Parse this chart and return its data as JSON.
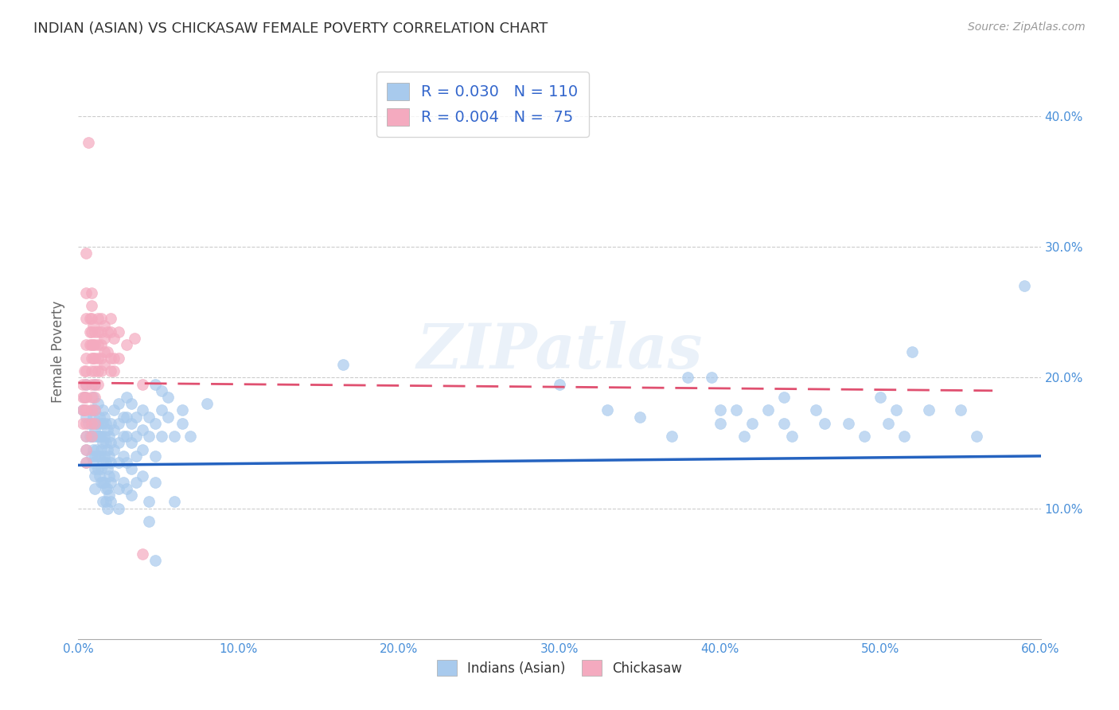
{
  "title": "INDIAN (ASIAN) VS CHICKASAW FEMALE POVERTY CORRELATION CHART",
  "source": "Source: ZipAtlas.com",
  "ylabel": "Female Poverty",
  "xlim": [
    0.0,
    0.6
  ],
  "ylim": [
    0.0,
    0.44
  ],
  "xticks": [
    0.0,
    0.1,
    0.2,
    0.3,
    0.4,
    0.5,
    0.6
  ],
  "yticks": [
    0.1,
    0.2,
    0.3,
    0.4
  ],
  "xticklabels": [
    "0.0%",
    "10.0%",
    "20.0%",
    "30.0%",
    "40.0%",
    "50.0%",
    "60.0%"
  ],
  "yticklabels": [
    "10.0%",
    "20.0%",
    "30.0%",
    "40.0%"
  ],
  "color_blue": "#A8CAED",
  "color_pink": "#F4AABF",
  "color_blue_line": "#2563C0",
  "color_pink_line": "#E05070",
  "legend_blue_R": "0.030",
  "legend_blue_N": "110",
  "legend_pink_R": "0.004",
  "legend_pink_N": "75",
  "watermark": "ZIPatlas",
  "blue_trend_y_start": 0.133,
  "blue_trend_y_end": 0.14,
  "pink_trend_y_start": 0.196,
  "pink_trend_y_end": 0.19,
  "blue_scatter": [
    [
      0.003,
      0.175
    ],
    [
      0.004,
      0.185
    ],
    [
      0.005,
      0.195
    ],
    [
      0.005,
      0.17
    ],
    [
      0.005,
      0.155
    ],
    [
      0.005,
      0.145
    ],
    [
      0.005,
      0.135
    ],
    [
      0.006,
      0.165
    ],
    [
      0.007,
      0.155
    ],
    [
      0.008,
      0.175
    ],
    [
      0.008,
      0.165
    ],
    [
      0.008,
      0.155
    ],
    [
      0.008,
      0.14
    ],
    [
      0.009,
      0.185
    ],
    [
      0.009,
      0.17
    ],
    [
      0.009,
      0.155
    ],
    [
      0.009,
      0.145
    ],
    [
      0.009,
      0.135
    ],
    [
      0.01,
      0.195
    ],
    [
      0.01,
      0.175
    ],
    [
      0.01,
      0.16
    ],
    [
      0.01,
      0.14
    ],
    [
      0.01,
      0.13
    ],
    [
      0.01,
      0.125
    ],
    [
      0.01,
      0.115
    ],
    [
      0.011,
      0.165
    ],
    [
      0.011,
      0.155
    ],
    [
      0.011,
      0.145
    ],
    [
      0.012,
      0.18
    ],
    [
      0.012,
      0.165
    ],
    [
      0.012,
      0.155
    ],
    [
      0.012,
      0.14
    ],
    [
      0.012,
      0.13
    ],
    [
      0.013,
      0.17
    ],
    [
      0.013,
      0.155
    ],
    [
      0.013,
      0.14
    ],
    [
      0.013,
      0.125
    ],
    [
      0.014,
      0.165
    ],
    [
      0.014,
      0.155
    ],
    [
      0.014,
      0.145
    ],
    [
      0.014,
      0.13
    ],
    [
      0.014,
      0.12
    ],
    [
      0.015,
      0.175
    ],
    [
      0.015,
      0.165
    ],
    [
      0.015,
      0.15
    ],
    [
      0.015,
      0.135
    ],
    [
      0.015,
      0.12
    ],
    [
      0.015,
      0.105
    ],
    [
      0.016,
      0.17
    ],
    [
      0.016,
      0.155
    ],
    [
      0.016,
      0.14
    ],
    [
      0.016,
      0.12
    ],
    [
      0.017,
      0.165
    ],
    [
      0.017,
      0.15
    ],
    [
      0.017,
      0.135
    ],
    [
      0.017,
      0.115
    ],
    [
      0.017,
      0.105
    ],
    [
      0.018,
      0.16
    ],
    [
      0.018,
      0.145
    ],
    [
      0.018,
      0.13
    ],
    [
      0.018,
      0.115
    ],
    [
      0.018,
      0.1
    ],
    [
      0.019,
      0.155
    ],
    [
      0.019,
      0.14
    ],
    [
      0.019,
      0.125
    ],
    [
      0.019,
      0.11
    ],
    [
      0.02,
      0.165
    ],
    [
      0.02,
      0.15
    ],
    [
      0.02,
      0.135
    ],
    [
      0.02,
      0.12
    ],
    [
      0.02,
      0.105
    ],
    [
      0.022,
      0.175
    ],
    [
      0.022,
      0.16
    ],
    [
      0.022,
      0.145
    ],
    [
      0.022,
      0.125
    ],
    [
      0.025,
      0.18
    ],
    [
      0.025,
      0.165
    ],
    [
      0.025,
      0.15
    ],
    [
      0.025,
      0.135
    ],
    [
      0.025,
      0.115
    ],
    [
      0.025,
      0.1
    ],
    [
      0.028,
      0.17
    ],
    [
      0.028,
      0.155
    ],
    [
      0.028,
      0.14
    ],
    [
      0.028,
      0.12
    ],
    [
      0.03,
      0.185
    ],
    [
      0.03,
      0.17
    ],
    [
      0.03,
      0.155
    ],
    [
      0.03,
      0.135
    ],
    [
      0.03,
      0.115
    ],
    [
      0.033,
      0.18
    ],
    [
      0.033,
      0.165
    ],
    [
      0.033,
      0.15
    ],
    [
      0.033,
      0.13
    ],
    [
      0.033,
      0.11
    ],
    [
      0.036,
      0.17
    ],
    [
      0.036,
      0.155
    ],
    [
      0.036,
      0.14
    ],
    [
      0.036,
      0.12
    ],
    [
      0.04,
      0.175
    ],
    [
      0.04,
      0.16
    ],
    [
      0.04,
      0.145
    ],
    [
      0.04,
      0.125
    ],
    [
      0.044,
      0.17
    ],
    [
      0.044,
      0.155
    ],
    [
      0.044,
      0.105
    ],
    [
      0.044,
      0.09
    ],
    [
      0.048,
      0.195
    ],
    [
      0.048,
      0.165
    ],
    [
      0.048,
      0.14
    ],
    [
      0.048,
      0.12
    ],
    [
      0.048,
      0.06
    ],
    [
      0.052,
      0.19
    ],
    [
      0.052,
      0.175
    ],
    [
      0.052,
      0.155
    ],
    [
      0.056,
      0.185
    ],
    [
      0.056,
      0.17
    ],
    [
      0.06,
      0.155
    ],
    [
      0.06,
      0.105
    ],
    [
      0.065,
      0.175
    ],
    [
      0.065,
      0.165
    ],
    [
      0.07,
      0.155
    ],
    [
      0.08,
      0.18
    ],
    [
      0.165,
      0.21
    ],
    [
      0.3,
      0.195
    ],
    [
      0.33,
      0.175
    ],
    [
      0.35,
      0.17
    ],
    [
      0.37,
      0.155
    ],
    [
      0.38,
      0.2
    ],
    [
      0.395,
      0.2
    ],
    [
      0.4,
      0.175
    ],
    [
      0.4,
      0.165
    ],
    [
      0.41,
      0.175
    ],
    [
      0.415,
      0.155
    ],
    [
      0.42,
      0.165
    ],
    [
      0.43,
      0.175
    ],
    [
      0.44,
      0.185
    ],
    [
      0.44,
      0.165
    ],
    [
      0.445,
      0.155
    ],
    [
      0.46,
      0.175
    ],
    [
      0.465,
      0.165
    ],
    [
      0.48,
      0.165
    ],
    [
      0.49,
      0.155
    ],
    [
      0.5,
      0.185
    ],
    [
      0.505,
      0.165
    ],
    [
      0.51,
      0.175
    ],
    [
      0.515,
      0.155
    ],
    [
      0.52,
      0.22
    ],
    [
      0.53,
      0.175
    ],
    [
      0.55,
      0.175
    ],
    [
      0.56,
      0.155
    ],
    [
      0.59,
      0.27
    ]
  ],
  "pink_scatter": [
    [
      0.003,
      0.195
    ],
    [
      0.003,
      0.185
    ],
    [
      0.003,
      0.175
    ],
    [
      0.003,
      0.165
    ],
    [
      0.004,
      0.205
    ],
    [
      0.004,
      0.185
    ],
    [
      0.004,
      0.175
    ],
    [
      0.005,
      0.295
    ],
    [
      0.005,
      0.265
    ],
    [
      0.005,
      0.245
    ],
    [
      0.005,
      0.225
    ],
    [
      0.005,
      0.215
    ],
    [
      0.005,
      0.205
    ],
    [
      0.005,
      0.195
    ],
    [
      0.005,
      0.185
    ],
    [
      0.005,
      0.175
    ],
    [
      0.005,
      0.165
    ],
    [
      0.005,
      0.155
    ],
    [
      0.005,
      0.145
    ],
    [
      0.005,
      0.135
    ],
    [
      0.006,
      0.38
    ],
    [
      0.007,
      0.245
    ],
    [
      0.007,
      0.235
    ],
    [
      0.007,
      0.225
    ],
    [
      0.008,
      0.265
    ],
    [
      0.008,
      0.255
    ],
    [
      0.008,
      0.245
    ],
    [
      0.008,
      0.235
    ],
    [
      0.008,
      0.225
    ],
    [
      0.008,
      0.215
    ],
    [
      0.008,
      0.205
    ],
    [
      0.008,
      0.195
    ],
    [
      0.008,
      0.185
    ],
    [
      0.008,
      0.175
    ],
    [
      0.008,
      0.165
    ],
    [
      0.008,
      0.155
    ],
    [
      0.009,
      0.24
    ],
    [
      0.009,
      0.225
    ],
    [
      0.009,
      0.215
    ],
    [
      0.01,
      0.235
    ],
    [
      0.01,
      0.225
    ],
    [
      0.01,
      0.215
    ],
    [
      0.01,
      0.205
    ],
    [
      0.01,
      0.195
    ],
    [
      0.01,
      0.185
    ],
    [
      0.01,
      0.175
    ],
    [
      0.01,
      0.165
    ],
    [
      0.012,
      0.245
    ],
    [
      0.012,
      0.235
    ],
    [
      0.012,
      0.225
    ],
    [
      0.012,
      0.215
    ],
    [
      0.012,
      0.205
    ],
    [
      0.012,
      0.195
    ],
    [
      0.014,
      0.245
    ],
    [
      0.014,
      0.235
    ],
    [
      0.014,
      0.225
    ],
    [
      0.014,
      0.215
    ],
    [
      0.014,
      0.205
    ],
    [
      0.016,
      0.24
    ],
    [
      0.016,
      0.23
    ],
    [
      0.016,
      0.22
    ],
    [
      0.016,
      0.21
    ],
    [
      0.018,
      0.235
    ],
    [
      0.018,
      0.22
    ],
    [
      0.02,
      0.245
    ],
    [
      0.02,
      0.235
    ],
    [
      0.02,
      0.215
    ],
    [
      0.02,
      0.205
    ],
    [
      0.022,
      0.23
    ],
    [
      0.022,
      0.215
    ],
    [
      0.022,
      0.205
    ],
    [
      0.025,
      0.235
    ],
    [
      0.025,
      0.215
    ],
    [
      0.03,
      0.225
    ],
    [
      0.035,
      0.23
    ],
    [
      0.04,
      0.195
    ],
    [
      0.04,
      0.065
    ]
  ]
}
